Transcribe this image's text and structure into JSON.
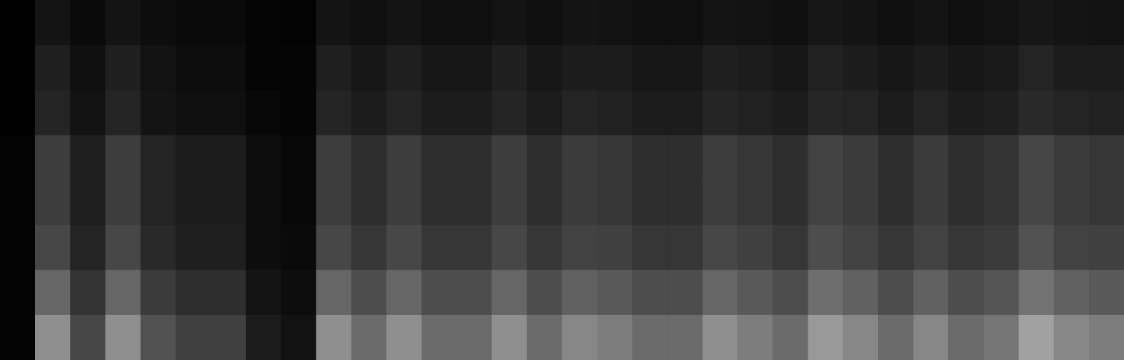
{
  "chart_data": {
    "type": "heatmap",
    "tick_labels": false,
    "grid": false,
    "zlim": [
      0,
      1
    ],
    "cells": [
      [
        0,
        0,
        0,
        0.01,
        0.01,
        0.01,
        0.01,
        0.01
      ],
      [
        0.08,
        0.12,
        0.14,
        0.24,
        0.24,
        0.28,
        0.4,
        0.56
      ],
      [
        0.04,
        0.06,
        0.07,
        0.12,
        0.12,
        0.14,
        0.2,
        0.28
      ],
      [
        0.08,
        0.12,
        0.14,
        0.24,
        0.24,
        0.28,
        0.4,
        0.56
      ],
      [
        0.05,
        0.07,
        0.08,
        0.14,
        0.14,
        0.16,
        0.23,
        0.32
      ],
      [
        0.04,
        0.05,
        0.06,
        0.11,
        0.11,
        0.12,
        0.18,
        0.25
      ],
      [
        0.04,
        0.05,
        0.06,
        0.11,
        0.11,
        0.12,
        0.18,
        0.25
      ],
      [
        0.02,
        0.02,
        0.03,
        0.05,
        0.05,
        0.05,
        0.08,
        0.11
      ],
      [
        0.01,
        0.02,
        0.02,
        0.03,
        0.03,
        0.04,
        0.05,
        0.07
      ],
      [
        0.08,
        0.12,
        0.14,
        0.24,
        0.24,
        0.28,
        0.4,
        0.56
      ],
      [
        0.06,
        0.09,
        0.11,
        0.18,
        0.18,
        0.21,
        0.3,
        0.42
      ],
      [
        0.08,
        0.12,
        0.14,
        0.24,
        0.24,
        0.28,
        0.4,
        0.56
      ],
      [
        0.06,
        0.09,
        0.11,
        0.18,
        0.18,
        0.21,
        0.3,
        0.42
      ],
      [
        0.06,
        0.09,
        0.11,
        0.18,
        0.18,
        0.21,
        0.3,
        0.42
      ],
      [
        0.08,
        0.12,
        0.14,
        0.24,
        0.24,
        0.28,
        0.4,
        0.56
      ],
      [
        0.06,
        0.09,
        0.11,
        0.18,
        0.18,
        0.21,
        0.3,
        0.42
      ],
      [
        0.08,
        0.11,
        0.14,
        0.23,
        0.23,
        0.26,
        0.38,
        0.53
      ],
      [
        0.07,
        0.11,
        0.13,
        0.21,
        0.21,
        0.25,
        0.35,
        0.49
      ],
      [
        0.06,
        0.09,
        0.11,
        0.18,
        0.18,
        0.21,
        0.3,
        0.42
      ],
      [
        0.06,
        0.09,
        0.11,
        0.18,
        0.18,
        0.21,
        0.3,
        0.42
      ],
      [
        0.08,
        0.12,
        0.14,
        0.24,
        0.24,
        0.28,
        0.4,
        0.56
      ],
      [
        0.07,
        0.11,
        0.13,
        0.21,
        0.21,
        0.25,
        0.35,
        0.49
      ],
      [
        0.06,
        0.09,
        0.11,
        0.18,
        0.18,
        0.21,
        0.3,
        0.42
      ],
      [
        0.09,
        0.13,
        0.15,
        0.26,
        0.26,
        0.3,
        0.43,
        0.6
      ],
      [
        0.08,
        0.11,
        0.14,
        0.23,
        0.23,
        0.26,
        0.38,
        0.53
      ],
      [
        0.06,
        0.09,
        0.11,
        0.18,
        0.18,
        0.21,
        0.3,
        0.42
      ],
      [
        0.08,
        0.11,
        0.14,
        0.23,
        0.23,
        0.26,
        0.38,
        0.53
      ],
      [
        0.06,
        0.09,
        0.11,
        0.18,
        0.18,
        0.21,
        0.3,
        0.42
      ],
      [
        0.07,
        0.1,
        0.12,
        0.2,
        0.2,
        0.23,
        0.33,
        0.46
      ],
      [
        0.09,
        0.14,
        0.16,
        0.27,
        0.27,
        0.32,
        0.45,
        0.63
      ],
      [
        0.08,
        0.11,
        0.14,
        0.23,
        0.23,
        0.26,
        0.38,
        0.53
      ],
      [
        0.07,
        0.11,
        0.13,
        0.21,
        0.21,
        0.25,
        0.35,
        0.49
      ]
    ]
  }
}
